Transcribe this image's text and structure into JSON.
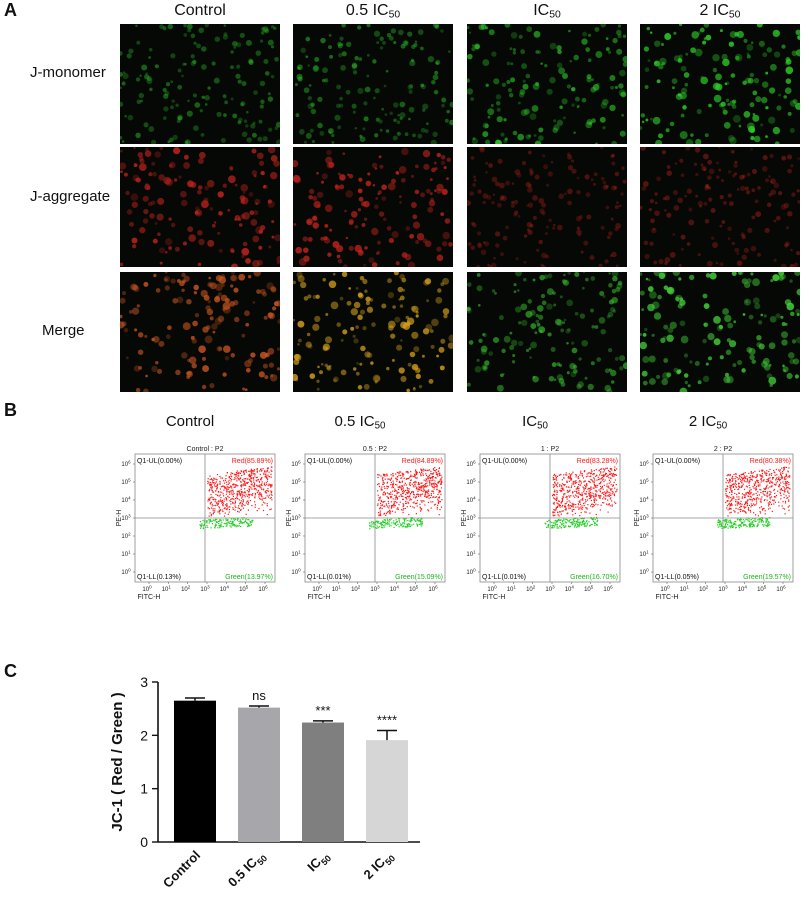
{
  "panels": {
    "a": "A",
    "b": "B",
    "c": "C"
  },
  "groups": [
    {
      "main": "Control",
      "sub": ""
    },
    {
      "main": "0.5 IC",
      "sub": "50"
    },
    {
      "main": "IC",
      "sub": "50"
    },
    {
      "main": "2 IC",
      "sub": "50"
    }
  ],
  "microscopy": {
    "rows": [
      "J-monomer",
      "J-aggregate",
      "Merge"
    ],
    "colors": {
      "green": "#2fd22a",
      "red": "#c4241c",
      "orange": "#d8a21c",
      "bg": "#050805"
    },
    "intensity": {
      "green": [
        0.3,
        0.35,
        0.55,
        0.85
      ],
      "red": [
        0.85,
        0.8,
        0.2,
        0.25
      ]
    },
    "merge_colors": [
      "#c8541f",
      "#d8a21c",
      "#3ccd30",
      "#46d83a"
    ]
  },
  "flow_cytometry": {
    "plot_titles": [
      "Control : P2",
      "0.5 : P2",
      "1 : P2",
      "2 : P2"
    ],
    "ul_labels": [
      "Q1-UL(0.00%)",
      "Q1-UL(0.00%)",
      "Q1-UL(0.00%)",
      "Q1-UL(0.00%)"
    ],
    "ll_labels": [
      "Q1-LL(0.13%)",
      "Q1-LL(0.01%)",
      "Q1-LL(0.01%)",
      "Q1-LL(0.05%)"
    ],
    "red_labels": [
      "Red(85.89%)",
      "Red(84.89%)",
      "Red(83.28%)",
      "Red(80.38%)"
    ],
    "green_labels": [
      "Green(13.97%)",
      "Green(15.09%)",
      "Green(16.70%)",
      "Green(19.57%)"
    ],
    "red_pct": [
      85.89,
      84.89,
      83.28,
      80.38
    ],
    "green_pct": [
      13.97,
      15.09,
      16.7,
      19.57
    ],
    "x_axis": "FITC-H",
    "y_axis": "PE-H",
    "tick_base": "10",
    "x_tick_exponents": [
      "0",
      "1",
      "2",
      "3",
      "4",
      "5",
      "6"
    ],
    "y_tick_exponents": [
      "0",
      "1",
      "2",
      "3",
      "4",
      "5",
      "6"
    ],
    "colors": {
      "red": "#ff1a1a",
      "green": "#1fcf1f",
      "gate": "#8a8a8a",
      "ul_label": "#111111",
      "red_label": "#ff1a1a",
      "green_label": "#18b818"
    }
  },
  "chart_data": {
    "type": "bar",
    "categories": [
      {
        "main": "Control",
        "sub": ""
      },
      {
        "main": "0.5 IC",
        "sub": "50"
      },
      {
        "main": "IC",
        "sub": "50"
      },
      {
        "main": "2 IC",
        "sub": "50"
      }
    ],
    "values": [
      2.65,
      2.52,
      2.24,
      1.91
    ],
    "errors": [
      0.05,
      0.03,
      0.03,
      0.18
    ],
    "significance": [
      "",
      "ns",
      "***",
      "****"
    ],
    "bar_colors": [
      "#000000",
      "#a7a6ab",
      "#7f7f7f",
      "#d6d6d6"
    ],
    "ylabel": "JC-1 ( Red / Green )",
    "ylim": [
      0,
      3
    ],
    "yticks": [
      0,
      1,
      2,
      3
    ],
    "grid": false
  }
}
